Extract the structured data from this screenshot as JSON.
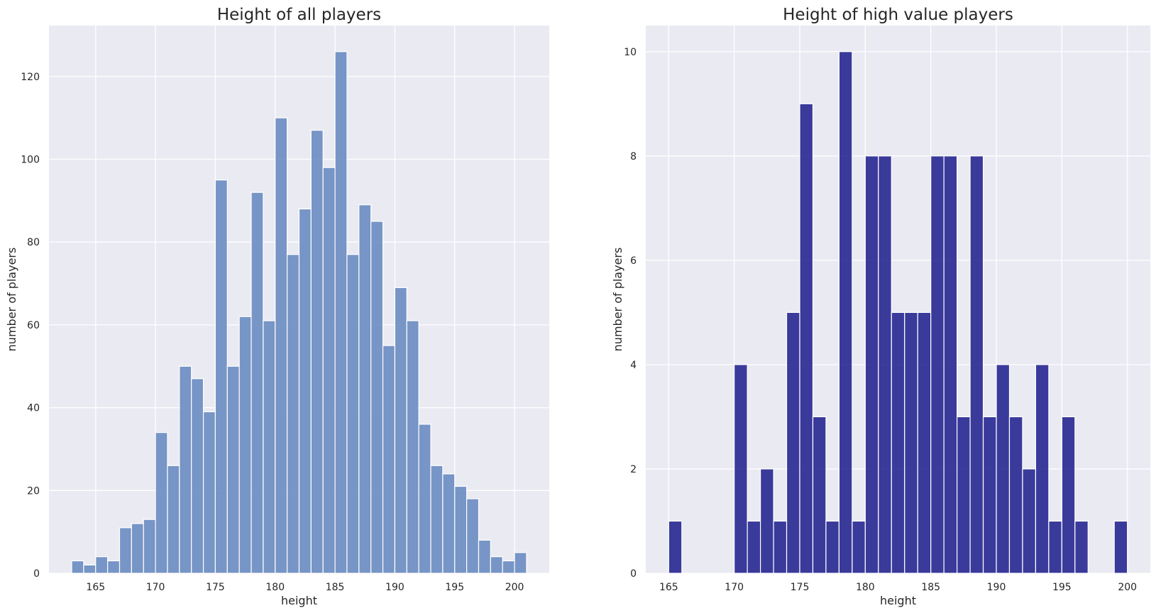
{
  "chart_data": [
    {
      "type": "bar",
      "title": "Height of all players",
      "xlabel": "height",
      "ylabel": "number of players",
      "color": "#6a8cc1",
      "background": "#eaeaf2",
      "grid": true,
      "xlim": [
        161.1,
        202.9
      ],
      "ylim": [
        0,
        132.3
      ],
      "xticks": [
        165,
        170,
        175,
        180,
        185,
        190,
        195,
        200
      ],
      "yticks": [
        0,
        20,
        40,
        60,
        80,
        100,
        120
      ],
      "bin_start": 163,
      "bin_width": 1,
      "values": [
        3,
        2,
        4,
        3,
        11,
        12,
        13,
        34,
        26,
        50,
        47,
        39,
        95,
        50,
        62,
        92,
        61,
        110,
        77,
        88,
        107,
        98,
        126,
        77,
        89,
        85,
        55,
        69,
        61,
        36,
        26,
        24,
        21,
        18,
        8,
        4,
        3,
        5
      ]
    },
    {
      "type": "bar",
      "title": "Height of high value players",
      "xlabel": "height",
      "ylabel": "number of players",
      "color": "#1b1b8c",
      "background": "#eaeaf2",
      "grid": true,
      "xlim": [
        163.25,
        201.75
      ],
      "ylim": [
        0,
        10.5
      ],
      "xticks": [
        165,
        170,
        175,
        180,
        185,
        190,
        195,
        200
      ],
      "yticks": [
        0,
        2,
        4,
        6,
        8,
        10
      ],
      "bin_start": 165,
      "bin_width": 1,
      "values": [
        1,
        0,
        0,
        0,
        0,
        4,
        1,
        2,
        1,
        5,
        9,
        3,
        1,
        10,
        1,
        8,
        8,
        5,
        5,
        5,
        8,
        8,
        3,
        8,
        3,
        4,
        3,
        2,
        4,
        1,
        3,
        1,
        0,
        0,
        1
      ]
    }
  ]
}
